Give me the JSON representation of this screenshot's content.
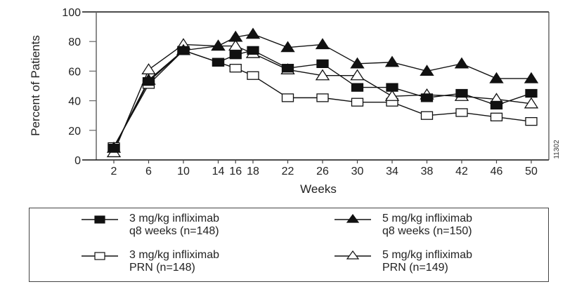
{
  "chart_data": {
    "type": "line",
    "title": "",
    "xlabel": "Weeks",
    "ylabel": "Percent of Patients",
    "x": [
      2,
      6,
      10,
      14,
      16,
      18,
      22,
      26,
      30,
      34,
      38,
      42,
      46,
      50
    ],
    "x_tick_labels": [
      "2",
      "6",
      "10",
      "14",
      "16",
      "18",
      "22",
      "26",
      "30",
      "34",
      "38",
      "42",
      "46",
      "50"
    ],
    "y_ticks": [
      0,
      20,
      40,
      60,
      80,
      100
    ],
    "y_tick_labels": [
      "0",
      "20",
      "40",
      "60",
      "80",
      "100"
    ],
    "ylim": [
      0,
      100
    ],
    "xlim": [
      0,
      52
    ],
    "grid": false,
    "legend_placement": "bottom",
    "figure_id": "11302",
    "series": [
      {
        "id": "s3q8",
        "name_line1": "3 mg/kg infliximab",
        "name_line2": "q8 weeks (n=148)",
        "marker": "filled-square",
        "values": [
          8,
          53,
          74,
          66,
          71,
          74,
          62,
          65,
          49,
          49,
          42,
          45,
          37,
          45
        ]
      },
      {
        "id": "s5q8",
        "name_line1": "5 mg/kg infliximab",
        "name_line2": "q8 weeks (n=150)",
        "marker": "filled-triangle",
        "values": [
          8,
          54,
          74,
          77,
          83,
          85,
          76,
          78,
          65,
          66,
          60,
          65,
          55,
          55
        ]
      },
      {
        "id": "s3prn",
        "name_line1": "3 mg/kg infliximab",
        "name_line2": "PRN (n=148)",
        "marker": "open-square",
        "values": [
          9,
          51,
          74,
          66,
          62,
          57,
          42,
          42,
          39,
          39,
          30,
          32,
          29,
          26
        ]
      },
      {
        "id": "s5prn",
        "name_line1": "5 mg/kg infliximab",
        "name_line2": "PRN (n=149)",
        "marker": "open-triangle",
        "values": [
          5,
          61,
          78,
          77,
          77,
          72,
          61,
          57,
          57,
          43,
          44,
          43,
          41,
          38
        ]
      }
    ]
  },
  "legend": {
    "items": [
      {
        "line1": "3 mg/kg infliximab",
        "line2": "q8 weeks (n=148)",
        "marker": "filled-square"
      },
      {
        "line1": "5 mg/kg infliximab",
        "line2": "q8 weeks (n=150)",
        "marker": "filled-triangle"
      },
      {
        "line1": "3 mg/kg infliximab",
        "line2": "PRN (n=148)",
        "marker": "open-square"
      },
      {
        "line1": "5 mg/kg infliximab",
        "line2": "PRN (n=149)",
        "marker": "open-triangle"
      }
    ]
  }
}
